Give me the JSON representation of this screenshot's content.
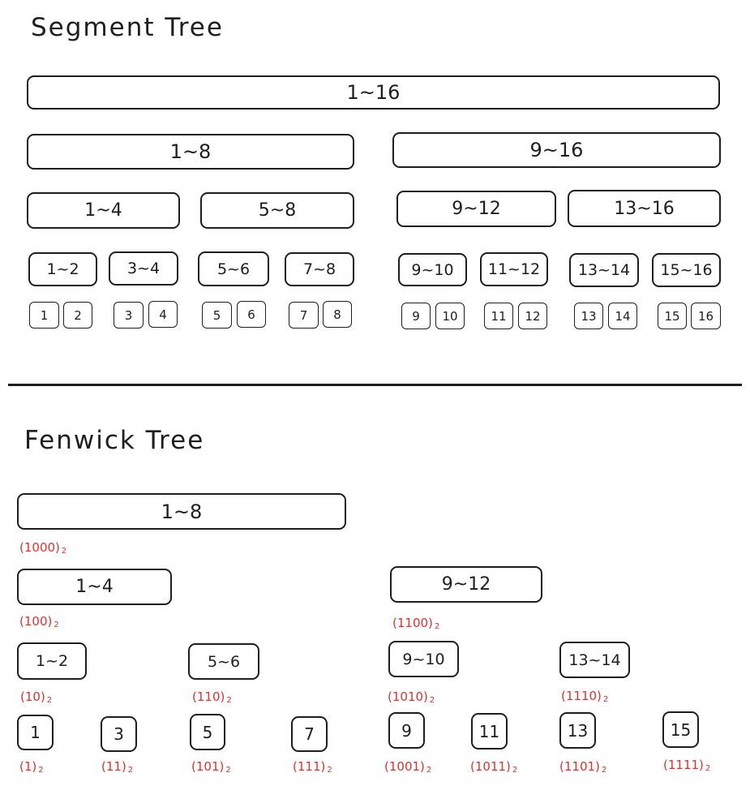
{
  "segment_tree": {
    "title": "Segment Tree",
    "level1": [
      "1~16"
    ],
    "level2": [
      "1~8",
      "9~16"
    ],
    "level3": [
      "1~4",
      "5~8",
      "9~12",
      "13~16"
    ],
    "level4": [
      "1~2",
      "3~4",
      "5~6",
      "7~8",
      "9~10",
      "11~12",
      "13~14",
      "15~16"
    ],
    "leaves": [
      "1",
      "2",
      "3",
      "4",
      "5",
      "6",
      "7",
      "8",
      "9",
      "10",
      "11",
      "12",
      "13",
      "14",
      "15",
      "16"
    ]
  },
  "fenwick_tree": {
    "title": "Fenwick Tree",
    "nodes": [
      {
        "label": "1~8",
        "binary": "(1000)",
        "base": "2"
      },
      {
        "label": "1~4",
        "binary": "(100)",
        "base": "2"
      },
      {
        "label": "9~12",
        "binary": "(1100)",
        "base": "2"
      },
      {
        "label": "1~2",
        "binary": "(10)",
        "base": "2"
      },
      {
        "label": "5~6",
        "binary": "(110)",
        "base": "2"
      },
      {
        "label": "9~10",
        "binary": "(1010)",
        "base": "2"
      },
      {
        "label": "13~14",
        "binary": "(1110)",
        "base": "2"
      },
      {
        "label": "1",
        "binary": "(1)",
        "base": "2"
      },
      {
        "label": "3",
        "binary": "(11)",
        "base": "2"
      },
      {
        "label": "5",
        "binary": "(101)",
        "base": "2"
      },
      {
        "label": "7",
        "binary": "(111)",
        "base": "2"
      },
      {
        "label": "9",
        "binary": "(1001)",
        "base": "2"
      },
      {
        "label": "11",
        "binary": "(1011)",
        "base": "2"
      },
      {
        "label": "13",
        "binary": "(1101)",
        "base": "2"
      },
      {
        "label": "15",
        "binary": "(1111)",
        "base": "2"
      }
    ]
  },
  "colors": {
    "stroke": "#1e1e1e",
    "binary_label": "#e03131"
  }
}
